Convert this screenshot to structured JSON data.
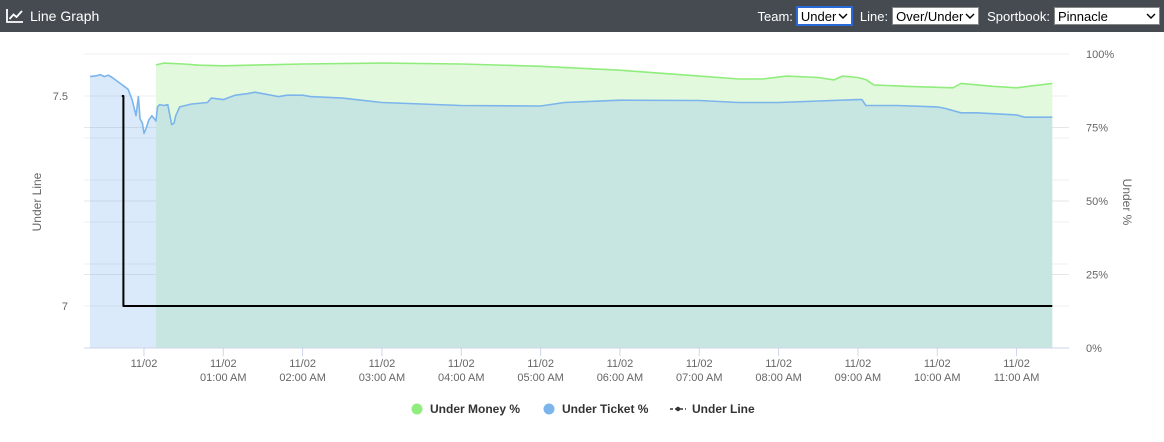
{
  "header": {
    "title": "Line Graph",
    "icon": "line-chart-icon",
    "team_label": "Team:",
    "team_value": "Under",
    "line_label": "Line:",
    "line_value": "Over/Under",
    "sportbook_label": "Sportbook:",
    "sportbook_value": "Pinnacle"
  },
  "chart_data": {
    "type": "line",
    "ylabel_left": "Under Line",
    "ylabel_right": "Under %",
    "yleft_ticks": [
      "7.5",
      "7"
    ],
    "yleft_range": [
      6.9,
      7.6
    ],
    "yright_ticks": [
      "100%",
      "75%",
      "50%",
      "25%",
      "0%"
    ],
    "yright_range": [
      0,
      100
    ],
    "x_range": [
      -0.63,
      11.56
    ],
    "x_ticks": [
      {
        "x": 0,
        "date": "11/02",
        "time": ""
      },
      {
        "x": 1,
        "date": "11/02",
        "time": "01:00 AM"
      },
      {
        "x": 2,
        "date": "11/02",
        "time": "02:00 AM"
      },
      {
        "x": 3,
        "date": "11/02",
        "time": "03:00 AM"
      },
      {
        "x": 4,
        "date": "11/02",
        "time": "04:00 AM"
      },
      {
        "x": 5,
        "date": "11/02",
        "time": "05:00 AM"
      },
      {
        "x": 6,
        "date": "11/02",
        "time": "06:00 AM"
      },
      {
        "x": 7,
        "date": "11/02",
        "time": "07:00 AM"
      },
      {
        "x": 8,
        "date": "11/02",
        "time": "08:00 AM"
      },
      {
        "x": 9,
        "date": "11/02",
        "time": "09:00 AM"
      },
      {
        "x": 10,
        "date": "11/02",
        "time": "10:00 AM"
      },
      {
        "x": 11,
        "date": "11/02",
        "time": "11:00 AM"
      }
    ],
    "series": [
      {
        "name": "Under Money %",
        "axis": "right",
        "color": "#90ed7d",
        "fill": "#e3f9dd",
        "points": [
          [
            0.15,
            96.3
          ],
          [
            0.25,
            96.9
          ],
          [
            0.5,
            96.6
          ],
          [
            0.7,
            96.2
          ],
          [
            1,
            96
          ],
          [
            2,
            96.6
          ],
          [
            3,
            96.9
          ],
          [
            4,
            96.6
          ],
          [
            5,
            95.8
          ],
          [
            6,
            94.5
          ],
          [
            7,
            92.5
          ],
          [
            7.5,
            91.5
          ],
          [
            7.8,
            91.5
          ],
          [
            8.1,
            92.5
          ],
          [
            8.5,
            92
          ],
          [
            8.7,
            91.2
          ],
          [
            8.8,
            92.5
          ],
          [
            9,
            92
          ],
          [
            9.1,
            91.3
          ],
          [
            9.2,
            89.5
          ],
          [
            9.6,
            89
          ],
          [
            10.2,
            88.5
          ],
          [
            10.3,
            90
          ],
          [
            10.7,
            89
          ],
          [
            11,
            88.5
          ],
          [
            11.2,
            89.2
          ],
          [
            11.45,
            90
          ]
        ]
      },
      {
        "name": "Under Ticket %",
        "axis": "right",
        "color": "#7cb5ec",
        "fill": "rgba(124,181,236,0.28)",
        "points": [
          [
            -0.68,
            92.3
          ],
          [
            -0.6,
            92.6
          ],
          [
            -0.55,
            93
          ],
          [
            -0.5,
            92.3
          ],
          [
            -0.45,
            92.8
          ],
          [
            -0.4,
            92
          ],
          [
            -0.3,
            90
          ],
          [
            -0.25,
            89
          ],
          [
            -0.2,
            88
          ],
          [
            -0.15,
            84.5
          ],
          [
            -0.1,
            79
          ],
          [
            -0.07,
            85.5
          ],
          [
            -0.05,
            78
          ],
          [
            -0.02,
            76.5
          ],
          [
            0,
            73
          ],
          [
            0.03,
            75
          ],
          [
            0.06,
            77.5
          ],
          [
            0.1,
            79
          ],
          [
            0.13,
            78
          ],
          [
            0.15,
            77.2
          ],
          [
            0.17,
            82
          ],
          [
            0.2,
            82.8
          ],
          [
            0.25,
            82.5
          ],
          [
            0.3,
            82.8
          ],
          [
            0.32,
            80
          ],
          [
            0.35,
            76
          ],
          [
            0.38,
            76.5
          ],
          [
            0.4,
            79
          ],
          [
            0.45,
            82
          ],
          [
            0.6,
            83
          ],
          [
            0.8,
            83.5
          ],
          [
            0.85,
            85
          ],
          [
            1,
            84.5
          ],
          [
            1.1,
            85.5
          ],
          [
            1.15,
            86
          ],
          [
            1.3,
            86.5
          ],
          [
            1.4,
            87
          ],
          [
            1.5,
            86.5
          ],
          [
            1.7,
            85.5
          ],
          [
            1.8,
            86
          ],
          [
            2,
            86
          ],
          [
            2.1,
            85.5
          ],
          [
            2.5,
            85
          ],
          [
            3,
            83.5
          ],
          [
            4,
            82.5
          ],
          [
            5,
            82.3
          ],
          [
            5.3,
            83.5
          ],
          [
            6,
            84.3
          ],
          [
            7,
            84.2
          ],
          [
            7.5,
            83.5
          ],
          [
            8,
            83.5
          ],
          [
            8.5,
            84
          ],
          [
            9,
            84.5
          ],
          [
            9.05,
            84.5
          ],
          [
            9.1,
            82.5
          ],
          [
            9.5,
            82.5
          ],
          [
            10,
            82
          ],
          [
            10.1,
            81.5
          ],
          [
            10.3,
            80
          ],
          [
            10.5,
            80
          ],
          [
            11,
            79.3
          ],
          [
            11.1,
            78.5
          ],
          [
            11.45,
            78.5
          ]
        ]
      },
      {
        "name": "Under Line",
        "axis": "left",
        "color": "#000000",
        "step": true,
        "points": [
          [
            -0.28,
            7.5
          ],
          [
            -0.26,
            7.5
          ],
          [
            -0.26,
            7.0
          ],
          [
            11.45,
            7.0
          ]
        ]
      }
    ],
    "legend": [
      "Under Money %",
      "Under Ticket %",
      "Under Line"
    ],
    "legend_position": "bottom-center",
    "grid": true
  }
}
